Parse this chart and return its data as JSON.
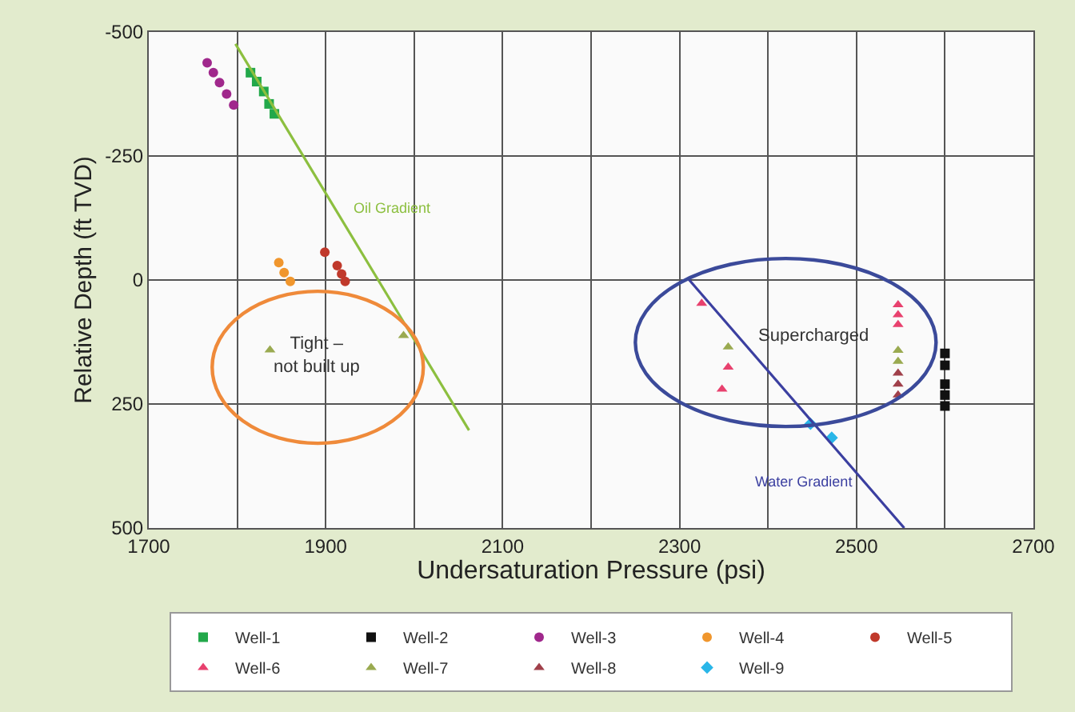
{
  "chart_data": {
    "type": "scatter",
    "xlabel": "Undersaturation Pressure (psi)",
    "ylabel": "Relative Depth (ft TVD)",
    "xlim": [
      1700,
      2700
    ],
    "xticks": [
      1700,
      1900,
      2100,
      2300,
      2500,
      2700
    ],
    "ylim": [
      500,
      -500
    ],
    "yticks": [
      -500,
      -250,
      0,
      250,
      500
    ],
    "grid": true,
    "legend": "bottom",
    "series": [
      {
        "name": "Well-1",
        "color": "#22a84a",
        "marker": "square",
        "x": [
          1815,
          1822,
          1830,
          1836,
          1842
        ],
        "values": [
          -418,
          -400,
          -380,
          -355,
          -335
        ]
      },
      {
        "name": "Well-2",
        "color": "#111111",
        "marker": "square",
        "x": [
          2600,
          2600,
          2600,
          2600,
          2600
        ],
        "values": [
          148,
          172,
          210,
          232,
          254
        ]
      },
      {
        "name": "Well-3",
        "color": "#a0288c",
        "marker": "circle",
        "x": [
          1766,
          1773,
          1780,
          1788,
          1796
        ],
        "values": [
          -438,
          -418,
          -398,
          -375,
          -353
        ]
      },
      {
        "name": "Well-4",
        "color": "#f0962d",
        "marker": "circle",
        "x": [
          1847,
          1853,
          1860
        ],
        "values": [
          -35,
          -15,
          3
        ]
      },
      {
        "name": "Well-5",
        "color": "#c0392b",
        "marker": "circle",
        "x": [
          1899,
          1913,
          1918,
          1922
        ],
        "values": [
          -56,
          -29,
          -12,
          3
        ]
      },
      {
        "name": "Well-6",
        "color": "#e8416e",
        "marker": "triangle",
        "x": [
          2325,
          2355,
          2348,
          2547,
          2547,
          2547
        ],
        "values": [
          47,
          176,
          220,
          50,
          70,
          90
        ]
      },
      {
        "name": "Well-7",
        "color": "#9aaa50",
        "marker": "triangle",
        "x": [
          1837,
          1988,
          2355,
          2547,
          2547
        ],
        "values": [
          141,
          112,
          135,
          142,
          164
        ]
      },
      {
        "name": "Well-8",
        "color": "#a0404a",
        "marker": "triangle",
        "x": [
          2547,
          2547,
          2547
        ],
        "values": [
          188,
          210,
          232
        ]
      },
      {
        "name": "Well-9",
        "color": "#29b6e8",
        "marker": "diamond",
        "x": [
          2448,
          2472
        ],
        "values": [
          290,
          318
        ]
      },
      {
        "type": "line",
        "color": "#8cbf3f",
        "marker": "none",
        "x": [
          1798,
          2062
        ],
        "values": [
          -476,
          303
        ]
      },
      {
        "type": "line",
        "color": "#3b3fa0",
        "marker": "none",
        "x": [
          2311,
          2554
        ],
        "values": [
          0,
          500
        ]
      }
    ],
    "annotations": [
      "Oil Gradient",
      "Water Gradient",
      "Tight –\nnot built up",
      "Supercharged"
    ]
  }
}
